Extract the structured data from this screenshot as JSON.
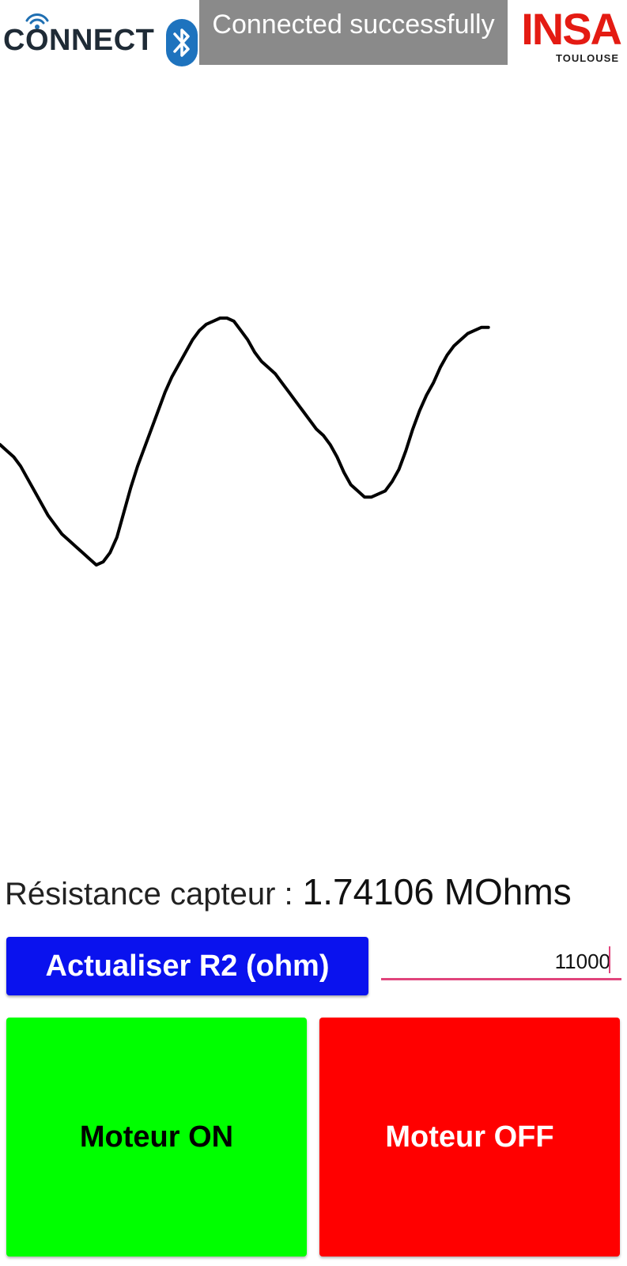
{
  "header": {
    "logo_left_text": "CONNECT",
    "status_text": "Connected successfully",
    "logo_right_text": "INSA",
    "logo_right_subtext": "TOULOUSE"
  },
  "colors": {
    "status_banner": "#8a8a8a",
    "update_button": "#0a12ee",
    "motor_on": "#00ff00",
    "motor_off": "#ff0000",
    "input_underline": "#e0457c",
    "insa_red": "#e41b13"
  },
  "chart_data": {
    "type": "line",
    "title": "",
    "xlabel": "",
    "ylabel": "",
    "grid": false,
    "series": [
      {
        "values": [
          0.39,
          0.37,
          0.35,
          0.32,
          0.28,
          0.24,
          0.2,
          0.16,
          0.13,
          0.1,
          0.08,
          0.06,
          0.04,
          0.02,
          0.0,
          0.01,
          0.04,
          0.09,
          0.17,
          0.25,
          0.32,
          0.38,
          0.44,
          0.5,
          0.56,
          0.61,
          0.65,
          0.69,
          0.73,
          0.76,
          0.78,
          0.79,
          0.8,
          0.8,
          0.79,
          0.76,
          0.73,
          0.69,
          0.66,
          0.64,
          0.62,
          0.59,
          0.56,
          0.53,
          0.5,
          0.47,
          0.44,
          0.42,
          0.39,
          0.35,
          0.3,
          0.26,
          0.24,
          0.22,
          0.22,
          0.23,
          0.24,
          0.27,
          0.31,
          0.37,
          0.44,
          0.5,
          0.55,
          0.59,
          0.64,
          0.68,
          0.71,
          0.73,
          0.75,
          0.76,
          0.77,
          0.77
        ]
      }
    ]
  },
  "resistance": {
    "label": "Résistance capteur :",
    "value": "1.74106 MOhms"
  },
  "r2": {
    "button_label": "Actualiser R2 (ohm)",
    "input_value": "11000"
  },
  "motor": {
    "on_label": "Moteur ON",
    "off_label": "Moteur OFF"
  }
}
